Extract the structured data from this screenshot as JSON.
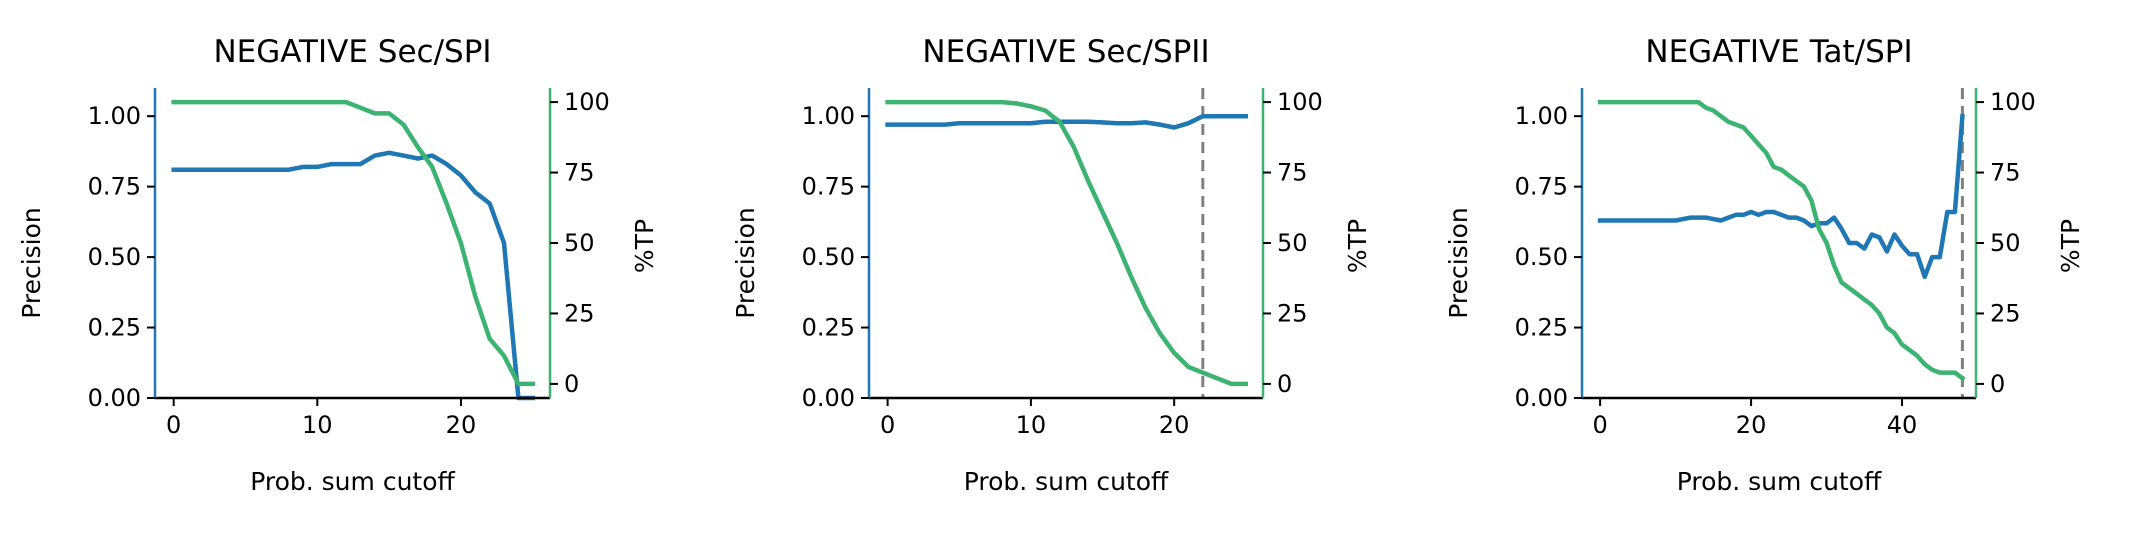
{
  "colors": {
    "precision": "#1f77b4",
    "tp": "#3cb371",
    "cutoff": "#808080",
    "axis": "#000000"
  },
  "chart_data": [
    {
      "type": "line",
      "title": "NEGATIVE Sec/SPI",
      "xlabel": "Prob. sum cutoff",
      "ylabel": "Precision",
      "y2label": "%TP",
      "xlim": [
        -1.3,
        26.2
      ],
      "ylim": [
        0,
        1.1
      ],
      "y2lim": [
        -5,
        105
      ],
      "xticks": [
        0,
        10,
        20
      ],
      "yticks": [
        "0.00",
        "0.25",
        "0.50",
        "0.75",
        "1.00"
      ],
      "y2ticks": [
        0,
        25,
        50,
        75,
        100
      ],
      "cutoff_line": null,
      "series": [
        {
          "name": "Precision",
          "axis": "left",
          "x": [
            0,
            1,
            2,
            3,
            4,
            5,
            6,
            7,
            8,
            9,
            10,
            11,
            12,
            13,
            14,
            15,
            16,
            17,
            18,
            19,
            20,
            21,
            22,
            23,
            24,
            25
          ],
          "y": [
            0.81,
            0.81,
            0.81,
            0.81,
            0.81,
            0.81,
            0.81,
            0.81,
            0.81,
            0.82,
            0.82,
            0.83,
            0.83,
            0.83,
            0.86,
            0.87,
            0.86,
            0.85,
            0.86,
            0.83,
            0.79,
            0.73,
            0.69,
            0.55,
            0.0,
            0.0
          ]
        },
        {
          "name": "%TP",
          "axis": "right",
          "x": [
            0,
            1,
            2,
            3,
            4,
            5,
            6,
            7,
            8,
            9,
            10,
            11,
            12,
            13,
            14,
            15,
            16,
            17,
            18,
            19,
            20,
            21,
            22,
            23,
            24,
            25
          ],
          "y": [
            100,
            100,
            100,
            100,
            100,
            100,
            100,
            100,
            100,
            100,
            100,
            100,
            100,
            98,
            96,
            96,
            92,
            84,
            77,
            64,
            50,
            31,
            16,
            10,
            0,
            0
          ]
        }
      ]
    },
    {
      "type": "line",
      "title": "NEGATIVE Sec/SPII",
      "xlabel": "Prob. sum cutoff",
      "ylabel": "Precision",
      "y2label": "%TP",
      "xlim": [
        -1.3,
        26.2
      ],
      "ylim": [
        0,
        1.1
      ],
      "y2lim": [
        -5,
        105
      ],
      "xticks": [
        0,
        10,
        20
      ],
      "yticks": [
        "0.00",
        "0.25",
        "0.50",
        "0.75",
        "1.00"
      ],
      "y2ticks": [
        0,
        25,
        50,
        75,
        100
      ],
      "cutoff_line": 22,
      "series": [
        {
          "name": "Precision",
          "axis": "left",
          "x": [
            0,
            1,
            2,
            3,
            4,
            5,
            6,
            7,
            8,
            9,
            10,
            11,
            12,
            13,
            14,
            15,
            16,
            17,
            18,
            19,
            20,
            21,
            22,
            23,
            24,
            25
          ],
          "y": [
            0.97,
            0.97,
            0.97,
            0.97,
            0.97,
            0.975,
            0.975,
            0.975,
            0.975,
            0.975,
            0.975,
            0.98,
            0.98,
            0.98,
            0.98,
            0.978,
            0.975,
            0.975,
            0.978,
            0.97,
            0.96,
            0.975,
            1.0,
            1.0,
            1.0,
            1.0
          ]
        },
        {
          "name": "%TP",
          "axis": "right",
          "x": [
            0,
            1,
            2,
            3,
            4,
            5,
            6,
            7,
            8,
            9,
            10,
            11,
            12,
            13,
            14,
            15,
            16,
            17,
            18,
            19,
            20,
            21,
            22,
            23,
            24,
            25
          ],
          "y": [
            100,
            100,
            100,
            100,
            100,
            100,
            100,
            100,
            100,
            99.5,
            98.5,
            97,
            93,
            84,
            72,
            61,
            50,
            38,
            27,
            18,
            11,
            6,
            4,
            2,
            0,
            0
          ]
        }
      ]
    },
    {
      "type": "line",
      "title": "NEGATIVE Tat/SPI",
      "xlabel": "Prob. sum cutoff",
      "ylabel": "Precision",
      "y2label": "%TP",
      "xlim": [
        -2.4,
        49.8
      ],
      "ylim": [
        0,
        1.1
      ],
      "y2lim": [
        -5,
        105
      ],
      "xticks": [
        0,
        20,
        40
      ],
      "yticks": [
        "0.00",
        "0.25",
        "0.50",
        "0.75",
        "1.00"
      ],
      "y2ticks": [
        0,
        25,
        50,
        75,
        100
      ],
      "cutoff_line": 48,
      "series": [
        {
          "name": "Precision",
          "axis": "left",
          "x": [
            0,
            2,
            4,
            6,
            8,
            10,
            12,
            14,
            16,
            17,
            18,
            19,
            20,
            21,
            22,
            23,
            24,
            25,
            26,
            27,
            28,
            29,
            30,
            31,
            32,
            33,
            34,
            35,
            36,
            37,
            38,
            39,
            40,
            41,
            42,
            43,
            44,
            45,
            46,
            47,
            48
          ],
          "y": [
            0.63,
            0.63,
            0.63,
            0.63,
            0.63,
            0.63,
            0.64,
            0.64,
            0.63,
            0.64,
            0.65,
            0.65,
            0.66,
            0.65,
            0.66,
            0.66,
            0.65,
            0.64,
            0.64,
            0.63,
            0.61,
            0.62,
            0.62,
            0.64,
            0.6,
            0.55,
            0.55,
            0.53,
            0.58,
            0.57,
            0.52,
            0.58,
            0.54,
            0.51,
            0.51,
            0.43,
            0.5,
            0.5,
            0.66,
            0.66,
            1.0
          ]
        },
        {
          "name": "%TP",
          "axis": "right",
          "x": [
            0,
            2,
            4,
            6,
            8,
            10,
            12,
            13,
            14,
            15,
            16,
            17,
            18,
            19,
            20,
            21,
            22,
            23,
            24,
            25,
            26,
            27,
            28,
            29,
            30,
            31,
            32,
            33,
            34,
            35,
            36,
            37,
            38,
            39,
            40,
            41,
            42,
            43,
            44,
            45,
            46,
            47,
            48
          ],
          "y": [
            100,
            100,
            100,
            100,
            100,
            100,
            100,
            100,
            98,
            97,
            95,
            93,
            92,
            91,
            88,
            85,
            82,
            77,
            76,
            74,
            72,
            70,
            65,
            55,
            50,
            42,
            36,
            34,
            32,
            30,
            28,
            25,
            20,
            18,
            14,
            12,
            10,
            7,
            5,
            4,
            4,
            4,
            2
          ]
        }
      ]
    }
  ]
}
